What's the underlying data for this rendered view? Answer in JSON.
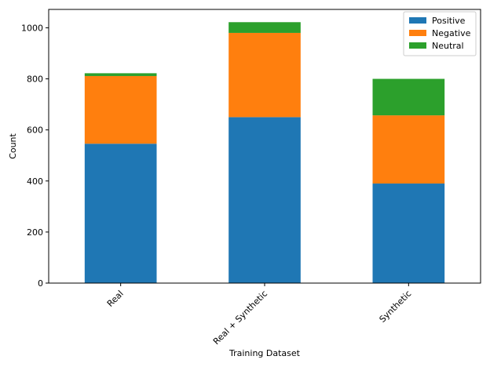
{
  "chart_data": {
    "type": "bar",
    "stacked": true,
    "categories": [
      "Real",
      "Real + Synthetic",
      "Synthetic"
    ],
    "series": [
      {
        "name": "Positive",
        "color": "#1f77b4",
        "values": [
          546,
          650,
          390
        ]
      },
      {
        "name": "Negative",
        "color": "#ff7f0e",
        "values": [
          265,
          330,
          267
        ]
      },
      {
        "name": "Neutral",
        "color": "#2ca02c",
        "values": [
          11,
          42,
          143
        ]
      }
    ],
    "xlabel": "Training Dataset",
    "ylabel": "Count",
    "ylim": [
      0,
      1072
    ],
    "yticks": [
      0,
      200,
      400,
      600,
      800,
      1000
    ],
    "grid": false,
    "legend_position": "top-right"
  }
}
